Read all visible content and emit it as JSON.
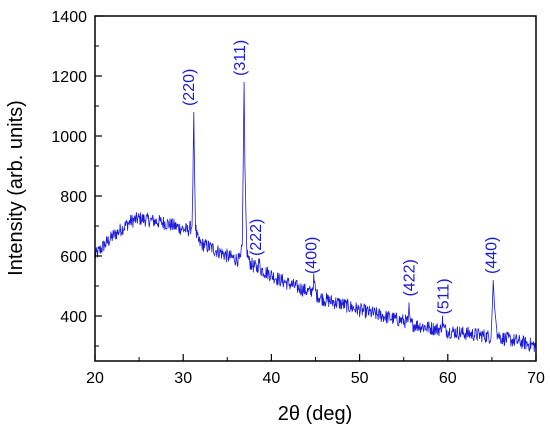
{
  "chart_data": {
    "type": "line",
    "title": "",
    "xlabel": "2θ (deg)",
    "ylabel": "Intensity (arb. units)",
    "xlim": [
      20,
      70
    ],
    "ylim": [
      250,
      1400
    ],
    "x_ticks": [
      20,
      30,
      40,
      50,
      60,
      70
    ],
    "y_ticks": [
      400,
      600,
      800,
      1000,
      1200,
      1400
    ],
    "grid": false,
    "line_color": "#1a1adb",
    "series": [
      {
        "x": [
          20,
          21,
          22,
          23,
          24,
          25,
          26,
          27,
          28,
          29,
          30,
          30.5,
          31,
          31.1,
          31.2,
          31.3,
          31.4,
          31.5,
          31.6,
          31.7,
          32,
          33,
          34,
          35,
          36,
          36.5,
          36.7,
          36.8,
          36.9,
          37.0,
          37.2,
          37.5,
          38,
          38.4,
          38.6,
          38.8,
          39.5,
          41,
          43,
          44.5,
          44.7,
          44.8,
          44.9,
          45.1,
          46,
          48,
          50,
          52,
          54,
          55.5,
          55.6,
          55.7,
          55.8,
          56,
          58,
          59.2,
          59.4,
          59.6,
          60,
          62,
          64,
          64.9,
          65.05,
          65.15,
          65.3,
          65.6,
          66,
          68,
          70
        ],
        "y": [
          600,
          635,
          665,
          690,
          715,
          725,
          720,
          715,
          710,
          700,
          690,
          685,
          700,
          850,
          1080,
          850,
          700,
          670,
          660,
          650,
          640,
          630,
          615,
          600,
          590,
          585,
          640,
          900,
          1180,
          900,
          620,
          580,
          565,
          560,
          580,
          555,
          545,
          520,
          495,
          478,
          500,
          520,
          500,
          470,
          455,
          440,
          420,
          405,
          390,
          380,
          445,
          380,
          375,
          372,
          360,
          355,
          385,
          355,
          350,
          342,
          335,
          330,
          430,
          520,
          430,
          340,
          328,
          315,
          300
        ]
      }
    ],
    "annotations": [
      {
        "text": "(220)",
        "x": 31.2,
        "y": 1100
      },
      {
        "text": "(311)",
        "x": 37.0,
        "y": 1200
      },
      {
        "text": "(222)",
        "x": 38.8,
        "y": 600
      },
      {
        "text": "(400)",
        "x": 45.1,
        "y": 540
      },
      {
        "text": "(422)",
        "x": 56.2,
        "y": 465
      },
      {
        "text": "(511)",
        "x": 60.1,
        "y": 405
      },
      {
        "text": "(440)",
        "x": 65.5,
        "y": 540
      }
    ]
  }
}
